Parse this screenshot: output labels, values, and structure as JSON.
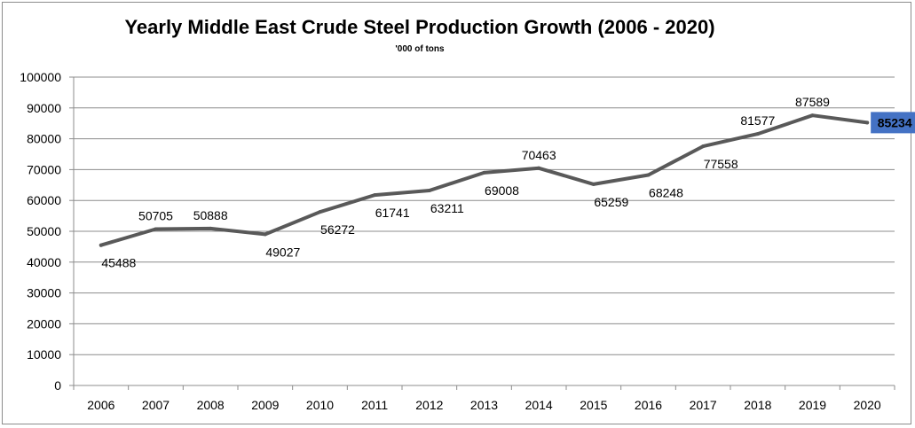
{
  "chart_data": {
    "type": "line",
    "title": "Yearly Middle East Crude Steel Production Growth (2006 - 2020)",
    "subtitle": "'000 of tons",
    "xlabel": "",
    "ylabel": "",
    "categories": [
      "2006",
      "2007",
      "2008",
      "2009",
      "2010",
      "2011",
      "2012",
      "2013",
      "2014",
      "2015",
      "2016",
      "2017",
      "2018",
      "2019",
      "2020"
    ],
    "series": [
      {
        "values": [
          45488,
          50705,
          50888,
          49027,
          56272,
          61741,
          63211,
          69008,
          70463,
          65259,
          68248,
          77558,
          81577,
          87589,
          85234
        ]
      }
    ],
    "ylim": [
      0,
      100000
    ],
    "yticks": [
      "0",
      "10000",
      "20000",
      "30000",
      "40000",
      "50000",
      "60000",
      "70000",
      "80000",
      "90000",
      "100000"
    ],
    "grid": true,
    "legend": "none",
    "data_labels": [
      "45488",
      "50705",
      "50888",
      "49027",
      "56272",
      "61741",
      "63211",
      "69008",
      "70463",
      "65259",
      "68248",
      "77558",
      "81577",
      "87589",
      "85234"
    ],
    "label_placement": [
      "below",
      "above",
      "above",
      "below",
      "below",
      "below",
      "below",
      "below",
      "above",
      "below",
      "below",
      "below",
      "above",
      "above",
      "right"
    ],
    "highlighted_label_index": 14,
    "colors": {
      "line": "#595959",
      "grid": "#8c8c8c",
      "axis": "#8c8c8c",
      "highlight_fill": "#4472c4",
      "frame": "#8c8c8c"
    }
  }
}
